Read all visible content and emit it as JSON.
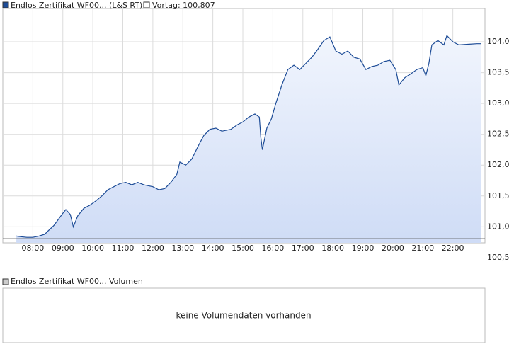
{
  "chart_data": {
    "type": "line",
    "series": [
      {
        "name": "Endlos Zertifikat WF00... (L&S RT)",
        "color": "#1c4b96",
        "x": [
          7.45,
          7.6,
          7.8,
          8.0,
          8.2,
          8.4,
          8.5,
          8.7,
          8.85,
          9.0,
          9.1,
          9.25,
          9.35,
          9.5,
          9.7,
          9.9,
          10.1,
          10.3,
          10.5,
          10.7,
          10.9,
          11.1,
          11.3,
          11.5,
          11.7,
          12.0,
          12.2,
          12.4,
          12.6,
          12.8,
          12.9,
          13.1,
          13.3,
          13.5,
          13.7,
          13.9,
          14.1,
          14.3,
          14.6,
          14.8,
          15.0,
          15.2,
          15.4,
          15.55,
          15.6,
          15.65,
          15.8,
          15.95,
          16.1,
          16.3,
          16.5,
          16.7,
          16.9,
          17.1,
          17.3,
          17.5,
          17.7,
          17.9,
          18.1,
          18.3,
          18.5,
          18.7,
          18.9,
          19.1,
          19.3,
          19.5,
          19.7,
          19.9,
          20.1,
          20.2,
          20.4,
          20.6,
          20.8,
          21.0,
          21.1,
          21.2,
          21.3,
          21.5,
          21.7,
          21.8,
          22.0,
          22.2,
          22.5,
          22.8,
          22.95
        ],
        "values": [
          100.85,
          100.84,
          100.83,
          100.83,
          100.85,
          100.88,
          100.93,
          101.02,
          101.12,
          101.22,
          101.28,
          101.2,
          101.0,
          101.18,
          101.3,
          101.35,
          101.42,
          101.5,
          101.6,
          101.65,
          101.7,
          101.72,
          101.68,
          101.72,
          101.68,
          101.65,
          101.6,
          101.62,
          101.72,
          101.85,
          102.05,
          102.0,
          102.1,
          102.3,
          102.48,
          102.58,
          102.6,
          102.55,
          102.58,
          102.65,
          102.7,
          102.78,
          102.83,
          102.78,
          102.45,
          102.25,
          102.6,
          102.75,
          103.0,
          103.3,
          103.55,
          103.62,
          103.55,
          103.65,
          103.75,
          103.88,
          104.02,
          104.08,
          103.85,
          103.8,
          103.85,
          103.75,
          103.72,
          103.55,
          103.6,
          103.62,
          103.68,
          103.7,
          103.55,
          103.3,
          103.42,
          103.48,
          103.55,
          103.58,
          103.45,
          103.65,
          103.95,
          104.02,
          103.95,
          104.1,
          104.0,
          103.95,
          103.96,
          103.97,
          103.97
        ]
      }
    ],
    "reference": {
      "value": 100.807,
      "label": "Vortag: 100,807"
    },
    "xlim": [
      7.0,
      23.07
    ],
    "xticks": [
      {
        "value": 8,
        "label": "08:00"
      },
      {
        "value": 9,
        "label": "09:00"
      },
      {
        "value": 10,
        "label": "10:00"
      },
      {
        "value": 11,
        "label": "11:00"
      },
      {
        "value": 12,
        "label": "12:00"
      },
      {
        "value": 13,
        "label": "13:00"
      },
      {
        "value": 14,
        "label": "14:00"
      },
      {
        "value": 15,
        "label": "15:00"
      },
      {
        "value": 16,
        "label": "16:00"
      },
      {
        "value": 17,
        "label": "17:00"
      },
      {
        "value": 18,
        "label": "18:00"
      },
      {
        "value": 19,
        "label": "19:00"
      },
      {
        "value": 20,
        "label": "20:00"
      },
      {
        "value": 21,
        "label": "21:00"
      },
      {
        "value": 22,
        "label": "22:00"
      }
    ],
    "ylim": [
      100.74,
      104.54
    ],
    "yticks": [
      {
        "value": 100.5,
        "label": "100,5"
      },
      {
        "value": 101,
        "label": "101,0"
      },
      {
        "value": 101.5,
        "label": "101,5"
      },
      {
        "value": 102,
        "label": "102,0"
      },
      {
        "value": 102.5,
        "label": "102,5"
      },
      {
        "value": 103,
        "label": "103,0"
      },
      {
        "value": 103.5,
        "label": "103,5"
      },
      {
        "value": 104,
        "label": "104,0"
      }
    ],
    "grid": true,
    "volume_panel": {
      "legend": "Endlos Zertifikat WF00... Volumen",
      "message": "keine Volumendaten vorhanden"
    }
  }
}
